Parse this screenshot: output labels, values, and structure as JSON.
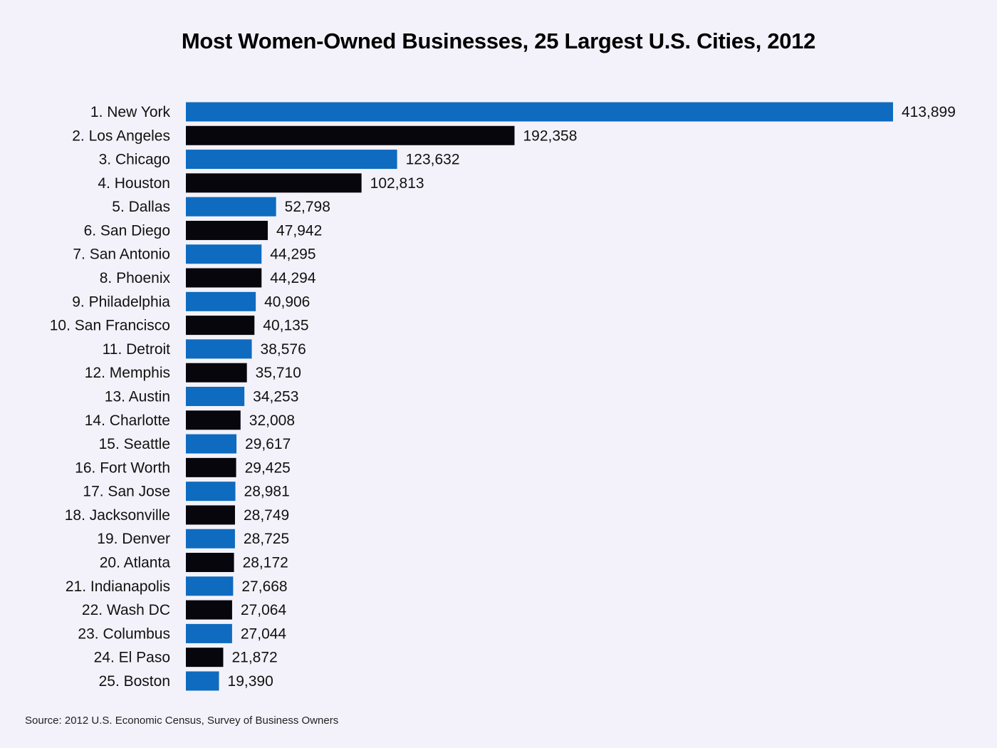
{
  "chart_data": {
    "type": "bar",
    "orientation": "horizontal",
    "title": "Most Women-Owned Businesses, 25 Largest U.S. Cities, 2012",
    "categories": [
      "1. New York",
      "2. Los Angeles",
      "3. Chicago",
      "4. Houston",
      "5. Dallas",
      "6. San Diego",
      "7. San Antonio",
      "8. Phoenix",
      "9. Philadelphia",
      "10. San Francisco",
      "11. Detroit",
      "12. Memphis",
      "13. Austin",
      "14. Charlotte",
      "15. Seattle",
      "16. Fort Worth",
      "17. San Jose",
      "18. Jacksonville",
      "19. Denver",
      "20. Atlanta",
      "21. Indianapolis",
      "22. Wash DC",
      "23. Columbus",
      "24. El Paso",
      "25. Boston"
    ],
    "values": [
      413899,
      192358,
      123632,
      102813,
      52798,
      47942,
      44295,
      44294,
      40906,
      40135,
      38576,
      35710,
      34253,
      32008,
      29617,
      29425,
      28981,
      28749,
      28725,
      28172,
      27668,
      27064,
      27044,
      21872,
      19390
    ],
    "value_labels": [
      "413,899",
      "192,358",
      "123,632",
      "102,813",
      "52,798",
      "47,942",
      "44,295",
      "44,294",
      "40,906",
      "40,135",
      "38,576",
      "35,710",
      "34,253",
      "32,008",
      "29,617",
      "29,425",
      "28,981",
      "28,749",
      "28,725",
      "28,172",
      "27,668",
      "27,064",
      "27,044",
      "21,872",
      "19,390"
    ],
    "bar_colors_alternating": [
      "#0e6bbf",
      "#07060c"
    ],
    "xlim": [
      0,
      413899
    ],
    "grid": false,
    "legend": "none",
    "xlabel": "",
    "ylabel": ""
  },
  "source": "Source: 2012 U.S. Economic Census, Survey of Business Owners"
}
